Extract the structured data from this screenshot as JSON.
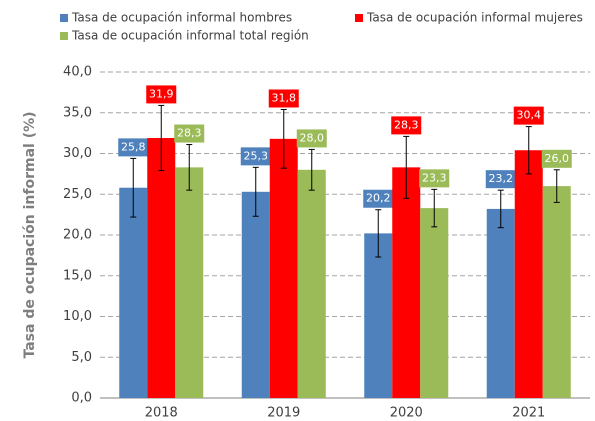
{
  "chart_data": {
    "type": "bar",
    "y_label": "Tasa de ocupación informal (%)",
    "categories": [
      "2018",
      "2019",
      "2020",
      "2021"
    ],
    "series": [
      {
        "name": "Tasa de ocupación informal hombres",
        "color": "#4f81bd",
        "values": [
          25.8,
          25.3,
          20.2,
          23.2
        ],
        "value_labels": [
          "25,8",
          "25,3",
          "20,2",
          "23,2"
        ],
        "errors": [
          3.6,
          3.0,
          2.9,
          2.3
        ]
      },
      {
        "name": "Tasa de ocupación informal mujeres",
        "color": "#ff0000",
        "values": [
          31.9,
          31.8,
          28.3,
          30.4
        ],
        "value_labels": [
          "31,9",
          "31,8",
          "28,3",
          "30,4"
        ],
        "errors": [
          4.0,
          3.6,
          3.8,
          2.9
        ]
      },
      {
        "name": "Tasa de ocupación informal total región",
        "color": "#9bbb59",
        "values": [
          28.3,
          28.0,
          23.3,
          26.0
        ],
        "value_labels": [
          "28,3",
          "28,0",
          "23,3",
          "26,0"
        ],
        "errors": [
          2.8,
          2.5,
          2.3,
          2.0
        ]
      }
    ],
    "ylim": [
      0,
      40
    ],
    "yticks": [
      {
        "value": 0,
        "label": "0,0"
      },
      {
        "value": 5,
        "label": "5,0"
      },
      {
        "value": 10,
        "label": "10,0"
      },
      {
        "value": 15,
        "label": "15,0"
      },
      {
        "value": 20,
        "label": "20,0"
      },
      {
        "value": 25,
        "label": "25,0"
      },
      {
        "value": 30,
        "label": "30,0"
      },
      {
        "value": 35,
        "label": "35,0"
      },
      {
        "value": 40,
        "label": "40,0"
      }
    ],
    "grid": true,
    "legend": "top"
  }
}
